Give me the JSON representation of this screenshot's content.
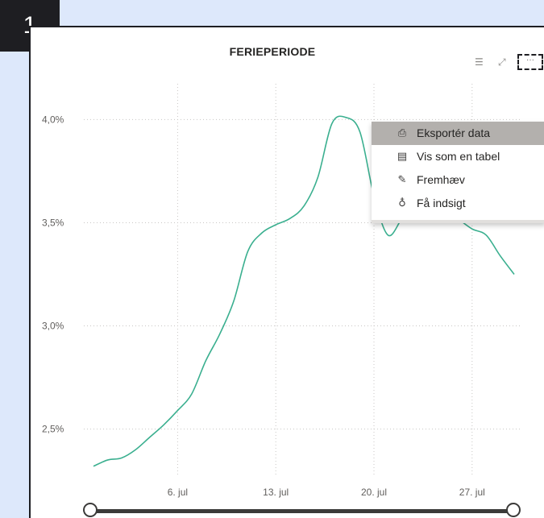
{
  "step_badge": "1",
  "visual": {
    "title": "FERIEPERIODE",
    "icons": {
      "filter": "filter-icon",
      "focus": "focus-mode-icon",
      "more": "more-options-icon"
    }
  },
  "context_menu": {
    "items": [
      {
        "label": "Eksportér data",
        "icon": "export-data-icon",
        "active": true
      },
      {
        "label": "Vis som en tabel",
        "icon": "show-as-table-icon",
        "active": false
      },
      {
        "label": "Fremhæv",
        "icon": "spotlight-icon",
        "active": false
      },
      {
        "label": "Få indsigt",
        "icon": "lightbulb-icon",
        "active": false
      }
    ]
  },
  "chart_data": {
    "type": "line",
    "title": "FERIEPERIODE",
    "xlabel": "",
    "ylabel": "",
    "x_ticks": [
      "6. jul",
      "13. jul",
      "20. jul",
      "27. jul"
    ],
    "y_ticks": [
      "2,5%",
      "3,0%",
      "3,5%",
      "4,0%"
    ],
    "ylim": [
      2.28,
      4.22
    ],
    "grid": "dotted",
    "series": [
      {
        "color": "#3aaf8f",
        "x": [
          "30. jun",
          "1. jul",
          "2. jul",
          "3. jul",
          "4. jul",
          "5. jul",
          "6. jul",
          "7. jul",
          "8. jul",
          "9. jul",
          "10. jul",
          "11. jul",
          "12. jul",
          "13. jul",
          "14. jul",
          "15. jul",
          "16. jul",
          "17. jul",
          "18. jul",
          "19. jul",
          "20. jul",
          "21. jul",
          "22. jul",
          "23. jul",
          "24. jul",
          "25. jul",
          "26. jul",
          "27. jul",
          "28. jul",
          "29. jul",
          "30. jul"
        ],
        "values": [
          2.32,
          2.35,
          2.36,
          2.4,
          2.46,
          2.52,
          2.59,
          2.67,
          2.83,
          2.96,
          3.12,
          3.36,
          3.45,
          3.49,
          3.52,
          3.58,
          3.72,
          3.98,
          4.01,
          3.94,
          3.63,
          3.44,
          3.52,
          3.6,
          3.64,
          3.58,
          3.52,
          3.47,
          3.44,
          3.34,
          3.25
        ]
      }
    ]
  },
  "slider": {
    "start_fraction": 0.0,
    "end_fraction": 1.0
  }
}
